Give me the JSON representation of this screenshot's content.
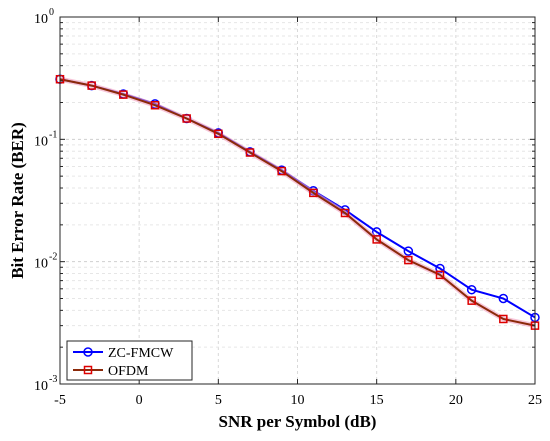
{
  "chart_data": {
    "type": "line",
    "xlabel": "SNR per Symbol (dB)",
    "ylabel": "Bit Error Rate (BER)",
    "xlim": [
      -5,
      25
    ],
    "ylim": [
      0.001,
      1
    ],
    "yscale": "log",
    "grid": true,
    "legend_position": "bottom-left",
    "x_ticks": [
      "-5",
      "0",
      "5",
      "10",
      "15",
      "20",
      "25"
    ],
    "y_ticks": [
      {
        "base": "10",
        "exp": "-3"
      },
      {
        "base": "10",
        "exp": "-2"
      },
      {
        "base": "10",
        "exp": "-1"
      },
      {
        "base": "10",
        "exp": "0"
      }
    ],
    "x": [
      -5,
      -3,
      -1,
      1,
      3,
      5,
      7,
      9,
      11,
      13,
      15,
      17,
      19,
      21,
      23,
      25
    ],
    "series": [
      {
        "name": "ZC-FMCW",
        "color": "#0000ff",
        "marker": "circle",
        "values": [
          0.31,
          0.275,
          0.235,
          0.195,
          0.148,
          0.113,
          0.079,
          0.056,
          0.038,
          0.0265,
          0.0175,
          0.0122,
          0.0088,
          0.0059,
          0.005,
          0.0035
        ]
      },
      {
        "name": "OFDM",
        "color": "#dd0000",
        "line_color": "#8b2a0a",
        "marker": "square",
        "values": [
          0.31,
          0.275,
          0.232,
          0.19,
          0.148,
          0.111,
          0.078,
          0.055,
          0.0365,
          0.025,
          0.0152,
          0.0103,
          0.0078,
          0.0048,
          0.0034,
          0.003
        ]
      }
    ]
  }
}
